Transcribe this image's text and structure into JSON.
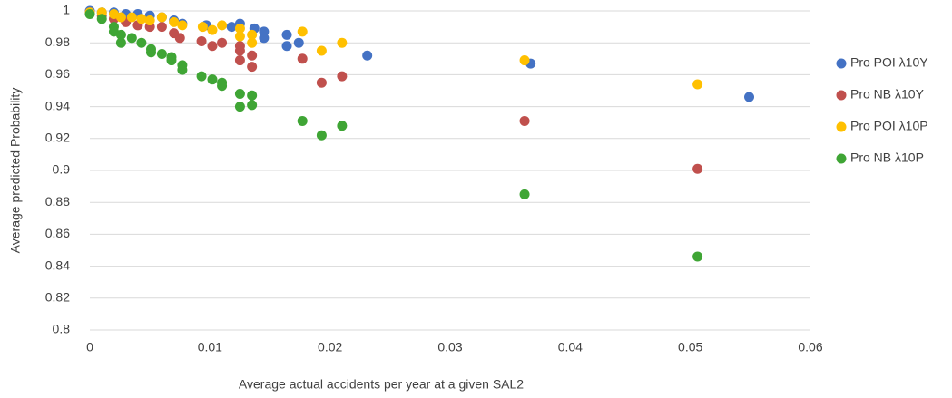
{
  "chart_data": {
    "type": "scatter",
    "x_label": "Average actual accidents per year at a given SAL2",
    "y_label": "Average predicted Probability",
    "xlim": [
      0,
      0.06
    ],
    "xticks": [
      0,
      0.01,
      0.02,
      0.03,
      0.04,
      0.05,
      0.06
    ],
    "ylim": [
      0.8,
      1
    ],
    "yticks": [
      0.8,
      0.82,
      0.84,
      0.86,
      0.88,
      0.9,
      0.92,
      0.94,
      0.96,
      0.98,
      1
    ],
    "grid": true,
    "legend": "right",
    "series": [
      {
        "name": "Pro POI λ10Y",
        "color": "#4472c4",
        "x": [
          0,
          0.001,
          0.002,
          0.003,
          0.004,
          0.005,
          0.006,
          0.007,
          0.0077,
          0.0097,
          0.0118,
          0.0125,
          0.0137,
          0.0145,
          0.0145,
          0.0164,
          0.0164,
          0.0174,
          0.0231,
          0.0367,
          0.0549
        ],
        "values": [
          1,
          0.999,
          0.999,
          0.998,
          0.998,
          0.997,
          0.996,
          0.994,
          0.992,
          0.991,
          0.99,
          0.992,
          0.989,
          0.987,
          0.983,
          0.985,
          0.978,
          0.98,
          0.972,
          0.967,
          0.946
        ]
      },
      {
        "name": "Pro NB λ10Y",
        "color": "#c0504d",
        "x": [
          0,
          0.001,
          0.002,
          0.003,
          0.004,
          0.005,
          0.006,
          0.007,
          0.0075,
          0.0093,
          0.0102,
          0.011,
          0.0125,
          0.0125,
          0.0125,
          0.0135,
          0.0135,
          0.0177,
          0.0193,
          0.021,
          0.0362,
          0.0506
        ],
        "values": [
          0.999,
          0.997,
          0.995,
          0.993,
          0.991,
          0.99,
          0.99,
          0.986,
          0.983,
          0.981,
          0.978,
          0.98,
          0.978,
          0.975,
          0.969,
          0.972,
          0.965,
          0.97,
          0.955,
          0.959,
          0.931,
          0.901
        ]
      },
      {
        "name": "Pro POI λ10P",
        "color": "#ffc000",
        "x": [
          0,
          0.001,
          0.002,
          0.0026,
          0.0035,
          0.0043,
          0.005,
          0.006,
          0.007,
          0.0077,
          0.0094,
          0.0102,
          0.011,
          0.0125,
          0.0125,
          0.0135,
          0.0135,
          0.0177,
          0.0193,
          0.021,
          0.0362,
          0.0506
        ],
        "values": [
          0.999,
          0.999,
          0.998,
          0.996,
          0.996,
          0.995,
          0.994,
          0.996,
          0.993,
          0.991,
          0.99,
          0.988,
          0.991,
          0.989,
          0.984,
          0.985,
          0.98,
          0.987,
          0.975,
          0.98,
          0.969,
          0.954
        ]
      },
      {
        "name": "Pro NB λ10P",
        "color": "#3fa535",
        "x": [
          0,
          0.001,
          0.002,
          0.002,
          0.0026,
          0.0026,
          0.0035,
          0.0043,
          0.0051,
          0.0051,
          0.006,
          0.0068,
          0.0068,
          0.0077,
          0.0077,
          0.0093,
          0.0102,
          0.011,
          0.011,
          0.0125,
          0.0125,
          0.0135,
          0.0135,
          0.0177,
          0.0193,
          0.021,
          0.0362,
          0.0506
        ],
        "values": [
          0.998,
          0.995,
          0.99,
          0.987,
          0.985,
          0.98,
          0.983,
          0.98,
          0.976,
          0.974,
          0.973,
          0.971,
          0.969,
          0.966,
          0.963,
          0.959,
          0.957,
          0.955,
          0.953,
          0.948,
          0.94,
          0.947,
          0.941,
          0.931,
          0.922,
          0.928,
          0.885,
          0.846
        ]
      }
    ]
  }
}
